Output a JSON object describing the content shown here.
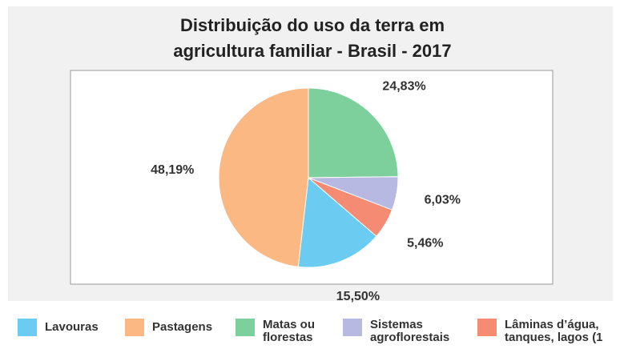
{
  "chart_data": {
    "type": "pie",
    "title": "Distribuição do uso da terra em agricultura familiar - Brasil - 2017",
    "categories": [
      "Lavouras",
      "Pastagens",
      "Matas ou florestas",
      "Sistemas agroflorestais",
      "Lâminas d’água, tanques, lagos (1"
    ],
    "values": [
      15.5,
      48.19,
      24.83,
      6.03,
      5.46
    ],
    "value_labels": [
      "15,50%",
      "48,19%",
      "24,83%",
      "6,03%",
      "5,46%"
    ],
    "colors": [
      "#6ccbf0",
      "#fbb883",
      "#7dcf9b",
      "#b8b9e2",
      "#f68b74"
    ],
    "legend": "bottom"
  }
}
